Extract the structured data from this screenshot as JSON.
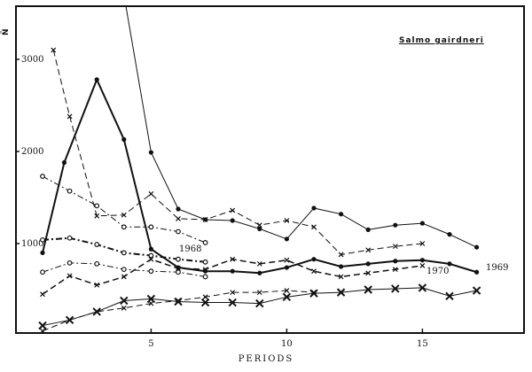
{
  "chart_data": {
    "type": "line",
    "title": "Salmo gairdneri",
    "xlabel": "PERIODS",
    "ylabel": "Ñ",
    "xlim": [
      0.5,
      18
    ],
    "ylim": [
      0,
      3500
    ],
    "x_ticks": [
      5,
      10,
      15
    ],
    "y_ticks": [
      1000,
      2000,
      3000
    ],
    "grid": false,
    "annotations": [
      {
        "text": "1968",
        "x": 6.8,
        "y": 920
      },
      {
        "text": "1969",
        "x": 17.6,
        "y": 690
      },
      {
        "text": "1970",
        "x": 15.2,
        "y": 580
      }
    ],
    "series": [
      {
        "name": "thin solid dots (upper)",
        "style": "solid",
        "width": 1,
        "marker": "dot",
        "x": [
          4,
          5,
          6,
          7,
          8,
          9,
          10,
          11,
          12,
          13,
          14,
          15,
          16,
          17
        ],
        "y": [
          3700,
          1990,
          1375,
          1260,
          1250,
          1160,
          1050,
          1385,
          1320,
          1150,
          1200,
          1220,
          1100,
          960
        ]
      },
      {
        "name": "thick solid dots (peak)",
        "style": "solid",
        "width": 2,
        "marker": "dot",
        "x": [
          1,
          1.8,
          3,
          4,
          5,
          6,
          7,
          8,
          9,
          10,
          11,
          12,
          13,
          14,
          15,
          16,
          17
        ],
        "y": [
          900,
          1880,
          2780,
          2130,
          940,
          740,
          700,
          700,
          680,
          740,
          830,
          750,
          780,
          810,
          820,
          780,
          690
        ]
      },
      {
        "name": "long-dash x (upper)",
        "style": "dash",
        "width": 1,
        "marker": "x",
        "x": [
          1.4,
          2,
          3,
          4,
          5,
          6,
          7,
          8,
          9,
          10,
          11,
          12,
          13,
          14,
          15
        ],
        "y": [
          3100,
          2380,
          1300,
          1310,
          1540,
          1270,
          1260,
          1360,
          1200,
          1250,
          1180,
          880,
          930,
          970,
          1000
        ]
      },
      {
        "name": "dash-dot o (1968 upper)",
        "style": "dashdot",
        "width": 1,
        "marker": "o",
        "x": [
          1,
          2,
          3,
          4,
          5,
          6,
          7
        ],
        "y": [
          1730,
          1570,
          1410,
          1180,
          1180,
          1130,
          1010
        ]
      },
      {
        "name": "heavy dash-dot o (1968 mid)",
        "style": "dashdot",
        "width": 2,
        "marker": "o",
        "x": [
          1,
          2,
          3,
          4,
          5,
          6,
          7
        ],
        "y": [
          1040,
          1060,
          990,
          900,
          870,
          830,
          800
        ]
      },
      {
        "name": "dash-dot o (1968 lower)",
        "style": "dashdot",
        "width": 1,
        "marker": "o",
        "x": [
          1,
          2,
          3,
          4,
          5,
          6,
          7
        ],
        "y": [
          690,
          790,
          780,
          720,
          700,
          690,
          640
        ]
      },
      {
        "name": "dash x (1970)",
        "style": "dash",
        "width": 1.5,
        "marker": "x",
        "x": [
          1,
          2,
          3,
          4,
          5,
          6,
          7,
          8,
          9,
          10,
          11,
          12,
          13,
          14,
          15
        ],
        "y": [
          450,
          650,
          550,
          640,
          830,
          730,
          720,
          830,
          780,
          820,
          700,
          640,
          680,
          720,
          760
        ]
      },
      {
        "name": "solid with X (lower)",
        "style": "solid",
        "width": 1,
        "marker": "X",
        "x": [
          1,
          2,
          3,
          4,
          5,
          6,
          7,
          8,
          9,
          10,
          11,
          12,
          13,
          14,
          15,
          16,
          17
        ],
        "y": [
          110,
          170,
          260,
          380,
          400,
          370,
          360,
          360,
          350,
          420,
          460,
          470,
          500,
          510,
          520,
          430,
          490
        ]
      },
      {
        "name": "dash x (lower)",
        "style": "dash",
        "width": 1,
        "marker": "x",
        "x": [
          1,
          2,
          3,
          4,
          5,
          6,
          7,
          8,
          9,
          10,
          11
        ],
        "y": [
          50,
          170,
          260,
          300,
          350,
          380,
          420,
          470,
          470,
          490,
          470
        ]
      }
    ]
  },
  "labels": {
    "title": "Salmo gairdneri",
    "xlabel": "PERIODS",
    "ylabel": "Ñ",
    "year_1968": "1968",
    "year_1969": "1969",
    "year_1970": "1970"
  }
}
